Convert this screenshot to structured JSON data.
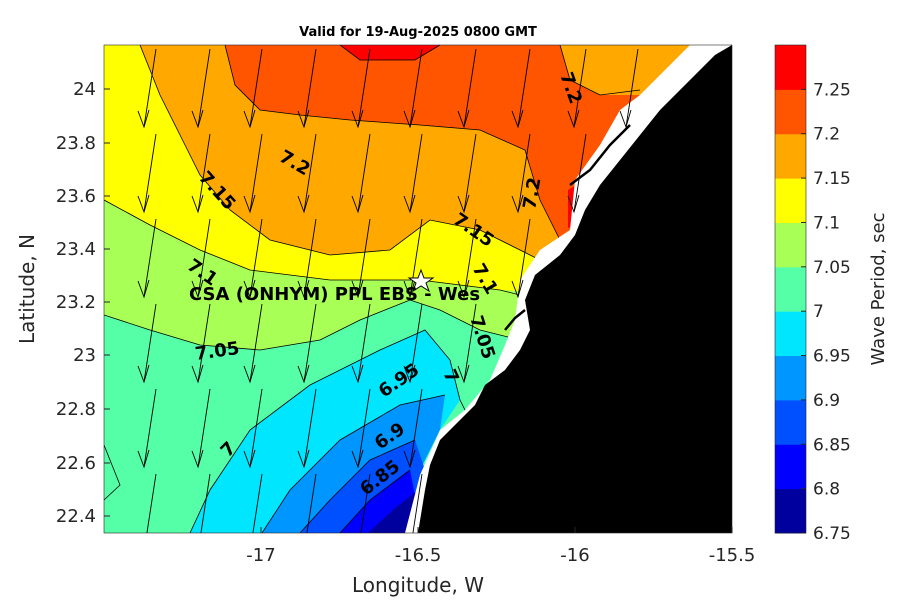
{
  "title": "Valid for 19-Aug-2025 0800 GMT",
  "xlabel": "Longitude, W",
  "ylabel": "Latitude, N",
  "x_ticks": [
    "-17",
    "-16.5",
    "-16",
    "-15.5"
  ],
  "y_ticks": [
    "22.4",
    "22.6",
    "22.8",
    "23",
    "23.2",
    "23.4",
    "23.6",
    "23.8",
    "24"
  ],
  "colorbar": {
    "label": "Wave Period, sec",
    "ticks": [
      "6.75",
      "6.8",
      "6.85",
      "6.9",
      "6.95",
      "7",
      "7.05",
      "7.1",
      "7.15",
      "7.2",
      "7.25"
    ],
    "colors": [
      "#00009f",
      "#0000ff",
      "#0050ff",
      "#0096ff",
      "#00e6ff",
      "#55ffa8",
      "#a8ff55",
      "#ffff00",
      "#ffa800",
      "#ff5500",
      "#ff0000"
    ]
  },
  "contour_labels": [
    "7.2",
    "7.2",
    "7.2",
    "7.15",
    "7.15",
    "7.1",
    "7.1",
    "7.05",
    "7.05",
    "7",
    "7",
    "6.95",
    "6.9",
    "6.85"
  ],
  "station": {
    "label": "CSA (ONHYM) PPL EBS  - Wes",
    "marker": "star",
    "lon": -16.51,
    "lat": 23.29
  },
  "chart_data": {
    "type": "heatmap",
    "title": "Valid for 19-Aug-2025 0800 GMT",
    "xlabel": "Longitude, W",
    "ylabel": "Latitude, N",
    "xlim": [
      -17.5,
      -15.5
    ],
    "ylim": [
      22.33,
      24.17
    ],
    "z_label": "Wave Period, sec",
    "z_range": [
      6.75,
      7.3
    ],
    "levels": [
      6.75,
      6.8,
      6.85,
      6.9,
      6.95,
      7.0,
      7.05,
      7.1,
      7.15,
      7.2,
      7.25,
      7.3
    ],
    "contour_lines": [
      7.2,
      7.15,
      7.1,
      7.05,
      7.0,
      6.95,
      6.9,
      6.85
    ],
    "land_color": "#000000",
    "vectors": "wave direction arrows pointing south, slightly west"
  }
}
